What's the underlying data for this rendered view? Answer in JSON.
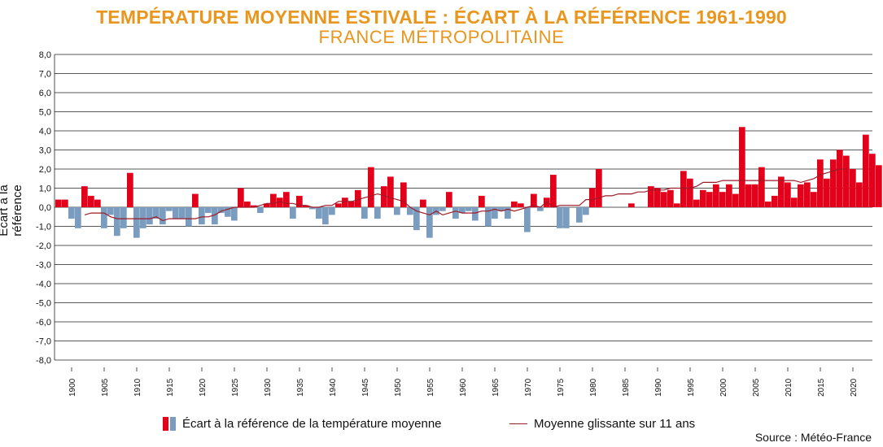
{
  "chart_data": {
    "type": "bar",
    "title": "TEMPÉRATURE MOYENNE ESTIVALE : ÉCART À LA RÉFÉRENCE 1961-1990",
    "subtitle": "FRANCE MÉTROPOLITAINE",
    "ylabel": "Écart à la référence",
    "ylim": [
      -8,
      8
    ],
    "yticks": [
      "-8,0",
      "-7,0",
      "-6,0",
      "-5,0",
      "-4,0",
      "-3,0",
      "-2,0",
      "-1,0",
      "0,0",
      "1,0",
      "2,0",
      "3,0",
      "4,0",
      "5,0",
      "6,0",
      "7,0",
      "8,0"
    ],
    "xticks": [
      "1900",
      "1905",
      "1910",
      "1915",
      "1920",
      "1925",
      "1930",
      "1935",
      "1940",
      "1945",
      "1950",
      "1955",
      "1960",
      "1965",
      "1970",
      "1975",
      "1980",
      "1985",
      "1990",
      "1995",
      "2000",
      "2005",
      "2010",
      "2015",
      "2020"
    ],
    "x_start": 1898,
    "colors": {
      "positive": "#e2001a",
      "negative": "#7a9cbf",
      "line": "#9e1a28"
    },
    "series": [
      {
        "name": "Écart à la référence de la température moyenne",
        "values": [
          0.4,
          0.4,
          -0.6,
          -1.1,
          1.1,
          0.6,
          0.4,
          -1.1,
          -0.4,
          -1.5,
          -1.1,
          1.8,
          -1.6,
          -1.1,
          -0.9,
          -0.6,
          -0.9,
          -0.2,
          -0.6,
          -0.6,
          -1.0,
          0.7,
          -0.9,
          -0.3,
          -0.9,
          -0.3,
          -0.5,
          -0.7,
          1.0,
          0.3,
          0.1,
          -0.3,
          0.2,
          0.7,
          0.5,
          0.8,
          -0.6,
          0.6,
          0.1,
          -0.1,
          -0.6,
          -0.9,
          -0.4,
          0.2,
          0.5,
          0.3,
          0.9,
          -0.6,
          2.1,
          -0.6,
          1.1,
          1.6,
          -0.4,
          1.3,
          -0.4,
          -1.2,
          0.4,
          -1.6,
          -0.4,
          -0.2,
          0.8,
          -0.6,
          -0.3,
          -0.2,
          -0.7,
          0.6,
          -1.0,
          -0.6,
          -0.2,
          -0.6,
          0.3,
          0.2,
          -1.3,
          0.7,
          -0.2,
          0.5,
          1.7,
          -1.1,
          -1.1,
          0.0,
          -0.8,
          -0.4,
          1.0,
          2.0,
          0.0,
          0.0,
          0.0,
          0.0,
          0.2,
          0.0,
          0.0,
          1.1,
          1.0,
          0.8,
          0.9,
          0.2,
          1.9,
          1.5,
          0.4,
          0.9,
          0.8,
          1.2,
          0.8,
          1.2,
          0.7,
          4.2,
          1.2,
          1.2,
          2.1,
          0.3,
          0.6,
          1.6,
          1.3,
          0.5,
          1.2,
          1.3,
          0.8,
          2.5,
          1.5,
          2.5,
          3.0,
          2.7,
          2.0,
          1.3,
          3.8,
          2.8,
          2.2
        ]
      },
      {
        "name": "Moyenne glissante sur 11 ans",
        "values": [
          null,
          null,
          null,
          null,
          -0.4,
          -0.3,
          -0.3,
          -0.3,
          -0.5,
          -0.6,
          -0.6,
          -0.6,
          -0.6,
          -0.6,
          -0.6,
          -0.5,
          -0.7,
          -0.6,
          -0.6,
          -0.6,
          -0.6,
          -0.6,
          -0.5,
          -0.5,
          -0.4,
          -0.2,
          -0.1,
          0.0,
          0.0,
          0.0,
          0.0,
          0.1,
          0.2,
          0.2,
          0.3,
          0.2,
          0.2,
          0.1,
          0.1,
          0.0,
          0.0,
          0.1,
          0.1,
          0.3,
          0.3,
          0.3,
          0.4,
          0.5,
          0.6,
          0.7,
          0.6,
          0.5,
          0.4,
          0.3,
          0.0,
          -0.2,
          -0.3,
          -0.4,
          -0.2,
          -0.4,
          -0.3,
          -0.2,
          -0.3,
          -0.3,
          -0.3,
          -0.2,
          -0.2,
          -0.1,
          -0.2,
          -0.1,
          -0.2,
          -0.1,
          0.0,
          0.1,
          0.0,
          0.3,
          0.0,
          0.1,
          0.1,
          0.1,
          0.1,
          0.4,
          0.4,
          0.5,
          0.6,
          0.6,
          0.7,
          0.7,
          0.7,
          0.8,
          0.8,
          0.9,
          0.9,
          0.9,
          1.0,
          1.0,
          1.0,
          1.0,
          1.1,
          1.3,
          1.3,
          1.3,
          1.4,
          1.4,
          1.4,
          1.4,
          1.4,
          1.4,
          1.4,
          1.4,
          1.4,
          1.4,
          1.4,
          1.4,
          1.3,
          1.4,
          1.5,
          1.7,
          1.8,
          1.9,
          2.0,
          2.0,
          null,
          null,
          null,
          null,
          null
        ]
      }
    ]
  },
  "legend": {
    "bars_label": "Écart à la référence de la température moyenne",
    "line_label": "Moyenne glissante sur 11 ans"
  },
  "source": "Source : Météo-France"
}
